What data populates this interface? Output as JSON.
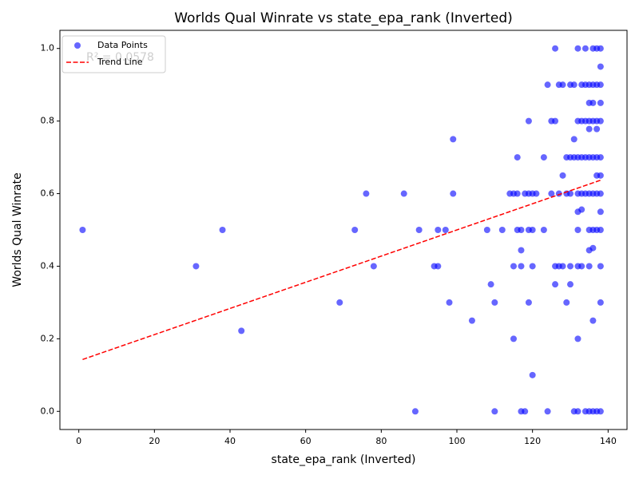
{
  "chart_data": {
    "type": "scatter",
    "title": "Worlds Qual Winrate vs state_epa_rank (Inverted)",
    "x_label": "state_epa_rank (Inverted)",
    "y_label": "Worlds Qual Winrate",
    "annotation": "R² = 0.0578",
    "legend": "upper left",
    "grid": false,
    "xlim": [
      -5,
      145
    ],
    "ylim": [
      -0.05,
      1.05
    ],
    "xticks": [
      0,
      20,
      40,
      60,
      80,
      100,
      120,
      140
    ],
    "yticks": [
      {
        "value": 0,
        "label": "0.0"
      },
      {
        "value": 0.2,
        "label": "0.2"
      },
      {
        "value": 0.4,
        "label": "0.4"
      },
      {
        "value": 0.6,
        "label": "0.6"
      },
      {
        "value": 0.8,
        "label": "0.8"
      },
      {
        "value": 1,
        "label": "1.0"
      }
    ],
    "series": [
      {
        "name": "Data Points",
        "color": "#0000ff",
        "x": [
          1,
          31,
          38,
          43,
          69,
          73,
          76,
          78,
          86,
          89,
          90,
          94,
          95,
          95,
          97,
          98,
          99,
          99,
          104,
          108,
          109,
          110,
          110,
          112,
          114,
          115,
          115,
          115,
          116,
          116,
          116,
          117,
          117,
          117,
          117,
          118,
          118,
          119,
          119,
          119,
          119,
          120,
          120,
          120,
          120,
          121,
          123,
          123,
          124,
          124,
          125,
          125,
          126,
          126,
          126,
          126,
          127,
          127,
          127,
          128,
          128,
          128,
          129,
          129,
          129,
          130,
          130,
          130,
          130,
          130,
          131,
          131,
          131,
          131,
          132,
          132,
          132,
          132,
          132,
          132,
          132,
          132,
          132,
          133,
          133,
          133,
          133,
          133,
          133,
          134,
          134,
          134,
          134,
          134,
          134,
          135,
          135,
          135,
          135,
          135,
          135,
          135,
          135,
          135,
          135,
          136,
          136,
          136,
          136,
          136,
          136,
          136,
          136,
          136,
          136,
          137,
          137,
          137,
          137,
          137,
          137,
          137,
          137,
          137,
          138,
          138,
          138,
          138,
          138,
          138,
          138,
          138,
          138,
          138,
          138,
          138,
          138
        ],
        "y": [
          0.5,
          0.4,
          0.5,
          0.222,
          0.3,
          0.5,
          0.6,
          0.4,
          0.6,
          0,
          0.5,
          0.4,
          0.4,
          0.5,
          0.5,
          0.3,
          0.75,
          0.6,
          0.25,
          0.5,
          0.35,
          0.3,
          0,
          0.5,
          0.6,
          0.6,
          0.4,
          0.2,
          0.7,
          0.6,
          0.5,
          0.5,
          0.444,
          0.4,
          0,
          0.6,
          0,
          0.8,
          0.6,
          0.5,
          0.3,
          0.6,
          0.5,
          0.4,
          0.1,
          0.6,
          0.7,
          0.5,
          0.9,
          0,
          0.8,
          0.6,
          1,
          0.8,
          0.4,
          0.35,
          0.9,
          0.6,
          0.4,
          0.9,
          0.65,
          0.4,
          0.7,
          0.6,
          0.3,
          0.9,
          0.7,
          0.6,
          0.4,
          0.35,
          0.9,
          0.75,
          0.7,
          0,
          1,
          0.8,
          0.7,
          0.6,
          0.55,
          0.5,
          0.4,
          0.2,
          0,
          0.9,
          0.8,
          0.7,
          0.6,
          0.556,
          0.4,
          1,
          0.9,
          0.8,
          0.7,
          0.6,
          0,
          0.9,
          0.85,
          0.8,
          0.778,
          0.7,
          0.6,
          0.5,
          0.444,
          0.4,
          0,
          1,
          0.9,
          0.85,
          0.8,
          0.7,
          0.6,
          0.5,
          0.45,
          0.25,
          0,
          1,
          0.9,
          0.8,
          0.778,
          0.7,
          0.65,
          0.6,
          0.5,
          0,
          1,
          0.95,
          0.9,
          0.85,
          0.8,
          0.7,
          0.65,
          0.6,
          0.55,
          0.5,
          0.4,
          0.3,
          0
        ]
      },
      {
        "name": "Trend Line",
        "color": "#ff0000",
        "x": [
          1,
          138
        ],
        "y": [
          0.143,
          0.637
        ]
      }
    ]
  }
}
